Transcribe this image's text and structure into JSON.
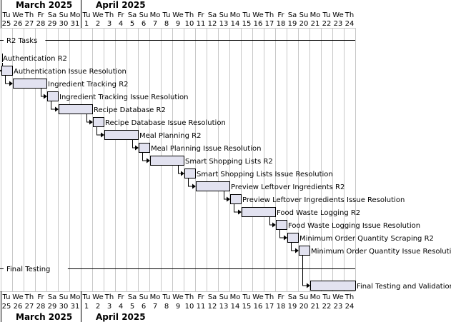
{
  "months": [
    {
      "label": "March 2025",
      "start_index": 0
    },
    {
      "label": "April 2025",
      "start_index": 7
    }
  ],
  "days": [
    {
      "dow": "Tu",
      "num": "25"
    },
    {
      "dow": "We",
      "num": "26"
    },
    {
      "dow": "Th",
      "num": "27"
    },
    {
      "dow": "Fr",
      "num": "28"
    },
    {
      "dow": "Sa",
      "num": "29"
    },
    {
      "dow": "Su",
      "num": "30"
    },
    {
      "dow": "Mo",
      "num": "31"
    },
    {
      "dow": "Tu",
      "num": "1"
    },
    {
      "dow": "We",
      "num": "2"
    },
    {
      "dow": "Th",
      "num": "3"
    },
    {
      "dow": "Fr",
      "num": "4"
    },
    {
      "dow": "Sa",
      "num": "5"
    },
    {
      "dow": "Su",
      "num": "6"
    },
    {
      "dow": "Mo",
      "num": "7"
    },
    {
      "dow": "Tu",
      "num": "8"
    },
    {
      "dow": "We",
      "num": "9"
    },
    {
      "dow": "Th",
      "num": "10"
    },
    {
      "dow": "Fr",
      "num": "11"
    },
    {
      "dow": "Sa",
      "num": "12"
    },
    {
      "dow": "Su",
      "num": "13"
    },
    {
      "dow": "Mo",
      "num": "14"
    },
    {
      "dow": "Tu",
      "num": "15"
    },
    {
      "dow": "We",
      "num": "16"
    },
    {
      "dow": "Th",
      "num": "17"
    },
    {
      "dow": "Fr",
      "num": "18"
    },
    {
      "dow": "Sa",
      "num": "19"
    },
    {
      "dow": "Su",
      "num": "20"
    },
    {
      "dow": "Mo",
      "num": "21"
    },
    {
      "dow": "Tu",
      "num": "22"
    },
    {
      "dow": "We",
      "num": "23"
    },
    {
      "dow": "Th",
      "num": "24"
    }
  ],
  "separators": [
    "R2 Tasks",
    "Final Testing"
  ],
  "tasks": [
    {
      "name": "Authentication R2",
      "start": 0,
      "days": 0,
      "kind": "milestone"
    },
    {
      "name": "Authentication Issue Resolution",
      "start": 0,
      "days": 1,
      "kind": "task"
    },
    {
      "name": "Ingredient Tracking R2",
      "start": 1,
      "days": 3,
      "kind": "task"
    },
    {
      "name": "Ingredient Tracking Issue Resolution",
      "start": 4,
      "days": 1,
      "kind": "task"
    },
    {
      "name": "Recipe Database R2",
      "start": 5,
      "days": 3,
      "kind": "task"
    },
    {
      "name": "Recipe Database Issue Resolution",
      "start": 8,
      "days": 1,
      "kind": "task"
    },
    {
      "name": "Meal Planning R2",
      "start": 9,
      "days": 3,
      "kind": "task"
    },
    {
      "name": "Meal Planning Issue Resolution",
      "start": 12,
      "days": 1,
      "kind": "task"
    },
    {
      "name": "Smart Shopping Lists R2",
      "start": 13,
      "days": 3,
      "kind": "task"
    },
    {
      "name": "Smart Shopping Lists Issue Resolution",
      "start": 16,
      "days": 1,
      "kind": "task"
    },
    {
      "name": "Preview Leftover Ingredients R2",
      "start": 17,
      "days": 3,
      "kind": "task"
    },
    {
      "name": "Preview Leftover Ingredients Issue Resolution",
      "start": 20,
      "days": 1,
      "kind": "task"
    },
    {
      "name": "Food Waste Logging R2",
      "start": 21,
      "days": 3,
      "kind": "task"
    },
    {
      "name": "Food Waste Logging Issue Resolution",
      "start": 24,
      "days": 1,
      "kind": "task"
    },
    {
      "name": "Minimum Order Quantity Scraping R2",
      "start": 25,
      "days": 1,
      "kind": "task"
    },
    {
      "name": "Minimum Order Quantity Issue Resolution",
      "start": 26,
      "days": 1,
      "kind": "task"
    },
    {
      "name": "Final Testing and Validation",
      "start": 27,
      "days": 4,
      "kind": "task"
    }
  ],
  "colors": {
    "bar_fill": "#e2e2f0",
    "bar_stroke": "#000000",
    "grid": "#c8c8c8",
    "line": "#000000"
  }
}
